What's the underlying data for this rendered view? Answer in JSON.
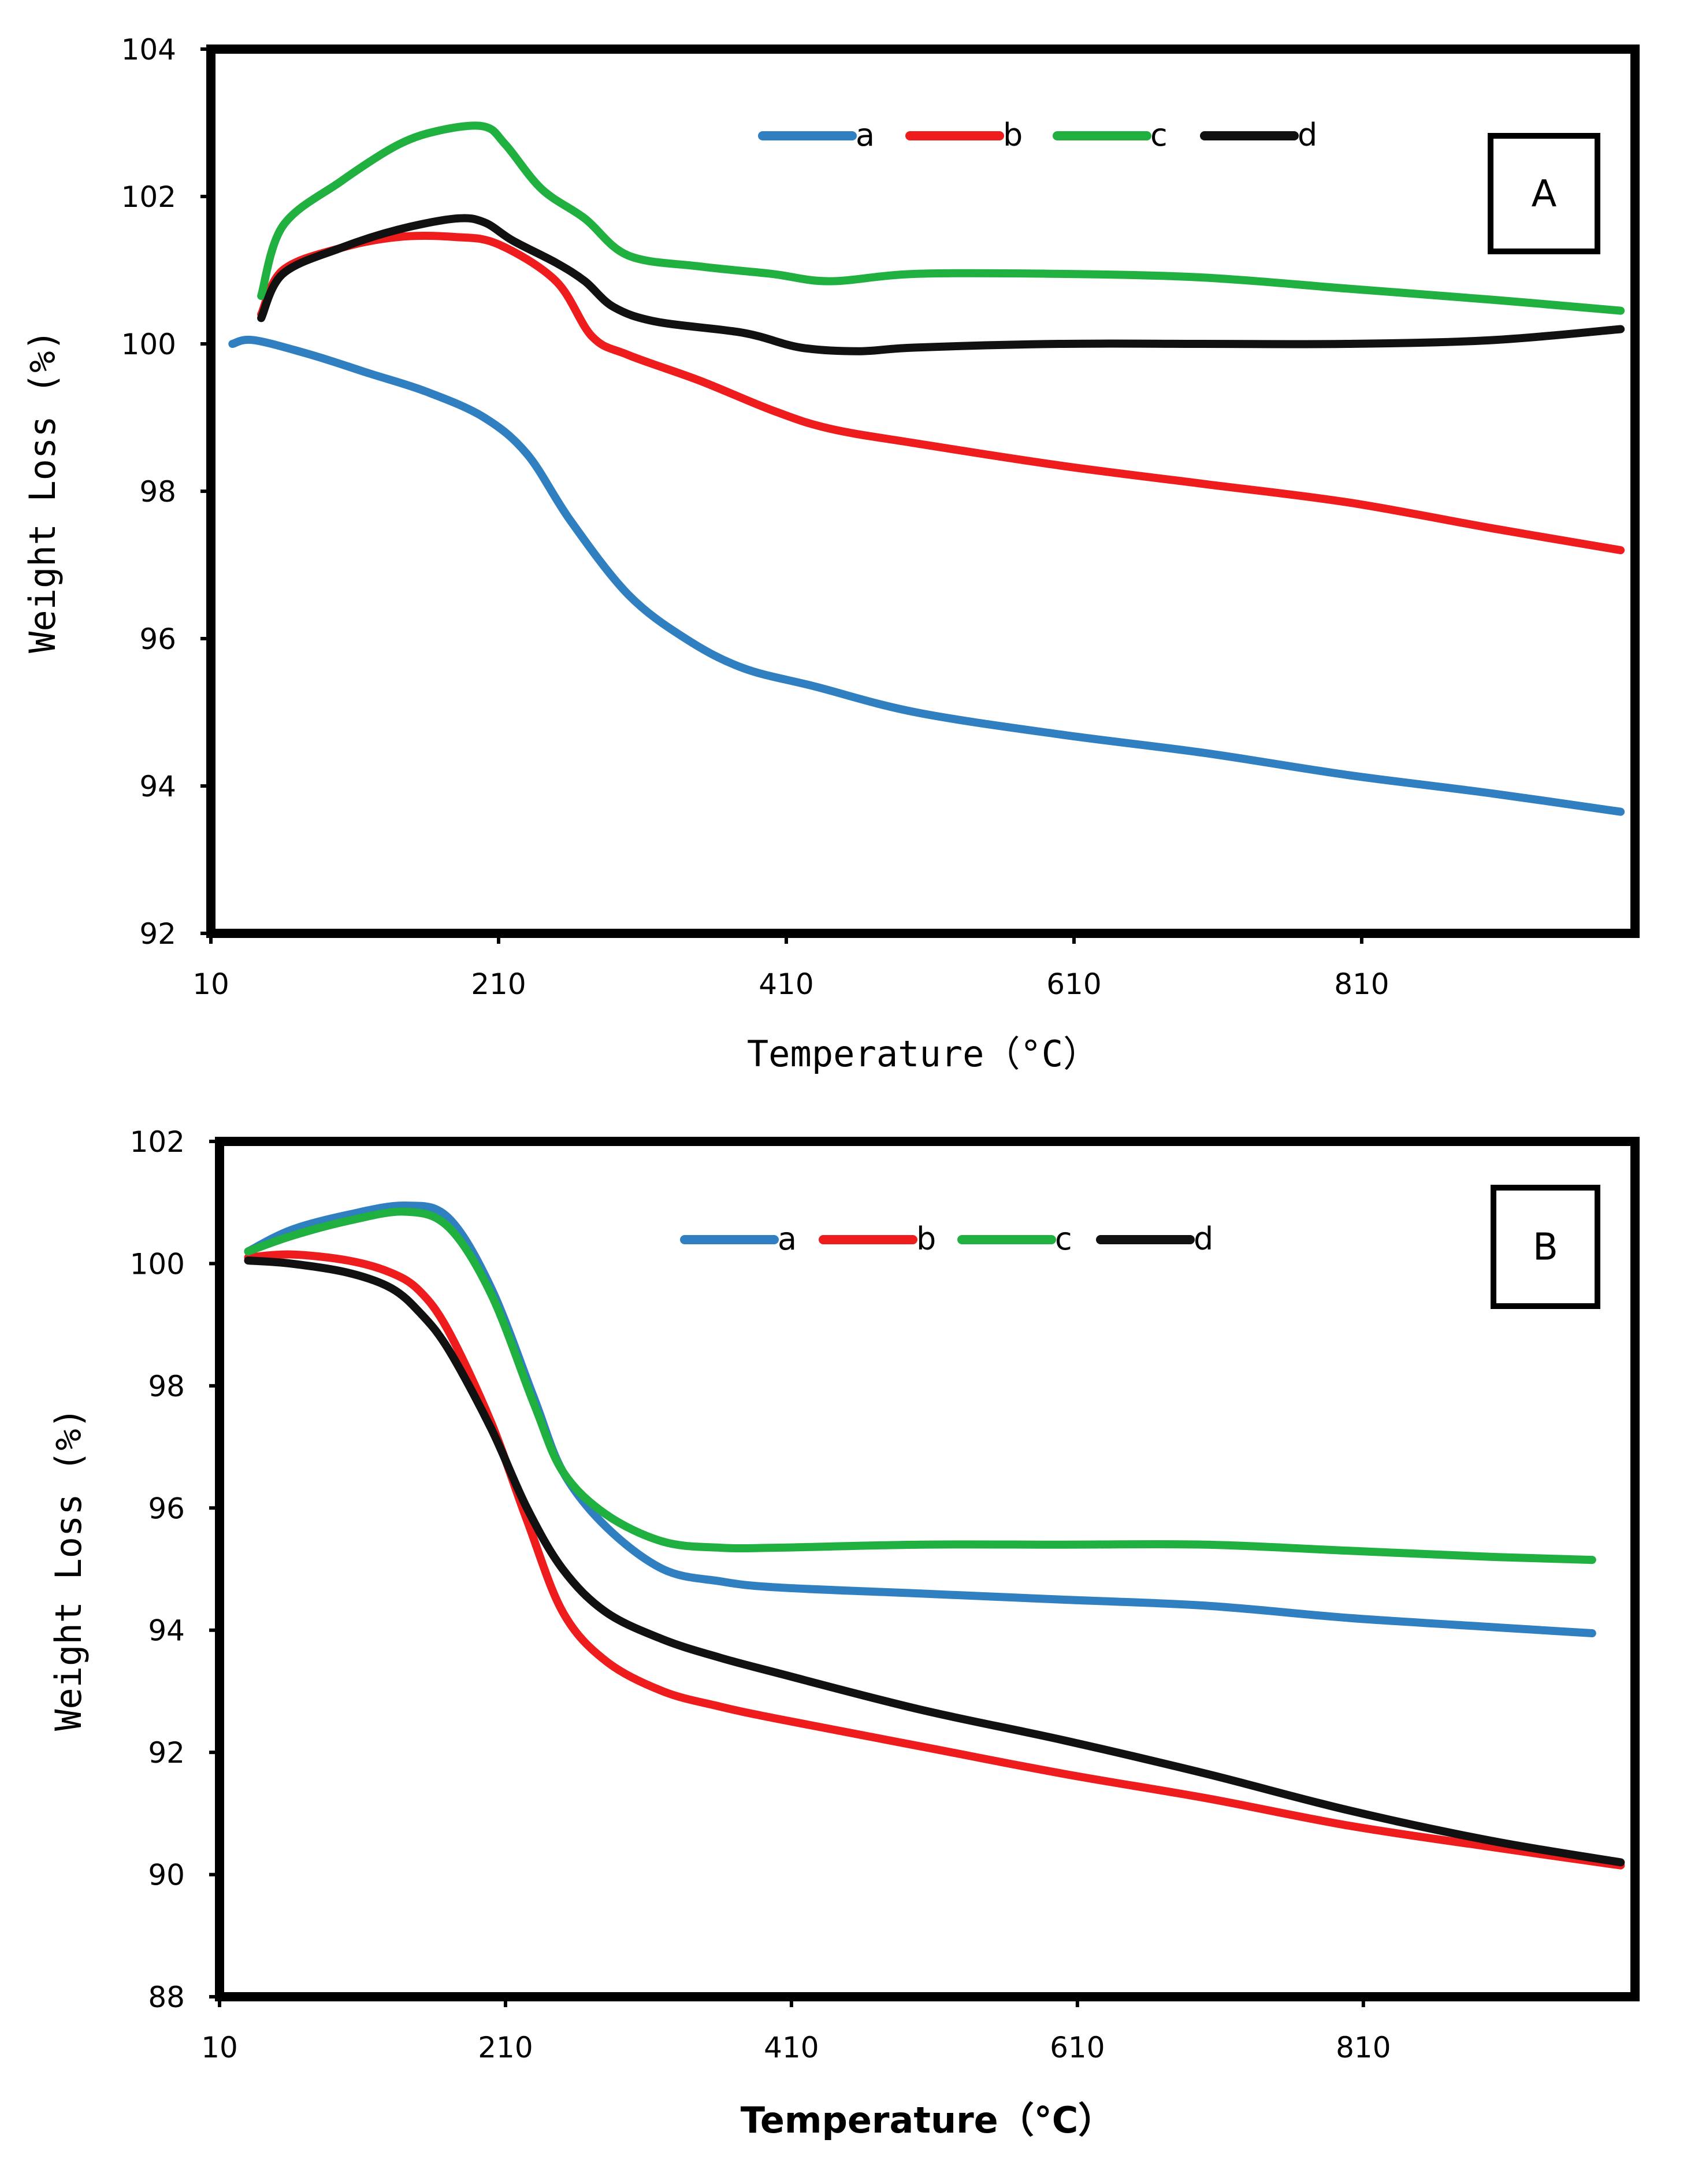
{
  "chart_data": [
    {
      "type": "line",
      "panel": "A",
      "xlabel": "Temperature（°C）",
      "ylabel": "Weight Loss (%)",
      "xlim": [
        10,
        1000
      ],
      "ylim": [
        92,
        104
      ],
      "xticks": [
        "10",
        "210",
        "410",
        "610",
        "810"
      ],
      "xtick_values": [
        10,
        210,
        410,
        610,
        810
      ],
      "yticks": [
        "92",
        "94",
        "96",
        "98",
        "100",
        "102",
        "104"
      ],
      "ytick_values": [
        92,
        94,
        96,
        98,
        100,
        102,
        104
      ],
      "legend_position": "top-center",
      "series": [
        {
          "name": "a",
          "color": "#2f7fc1",
          "x": [
            25,
            40,
            80,
            120,
            160,
            200,
            230,
            260,
            300,
            340,
            380,
            430,
            500,
            600,
            700,
            800,
            900,
            990
          ],
          "y": [
            100.0,
            100.05,
            99.85,
            99.6,
            99.35,
            99.0,
            98.5,
            97.6,
            96.6,
            96.0,
            95.6,
            95.35,
            95.0,
            94.7,
            94.45,
            94.15,
            93.9,
            93.65
          ]
        },
        {
          "name": "b",
          "color": "#ee1c1c",
          "x": [
            45,
            60,
            100,
            140,
            180,
            210,
            250,
            275,
            300,
            350,
            400,
            440,
            500,
            600,
            700,
            800,
            900,
            990
          ],
          "y": [
            100.4,
            101.0,
            101.3,
            101.45,
            101.45,
            101.35,
            100.85,
            100.1,
            99.85,
            99.5,
            99.1,
            98.85,
            98.65,
            98.35,
            98.1,
            97.85,
            97.5,
            97.2
          ]
        },
        {
          "name": "c",
          "color": "#1fb040",
          "x": [
            45,
            60,
            100,
            140,
            170,
            200,
            215,
            240,
            270,
            300,
            350,
            400,
            440,
            500,
            600,
            700,
            800,
            900,
            990
          ],
          "y": [
            100.65,
            101.6,
            102.2,
            102.7,
            102.9,
            102.95,
            102.7,
            102.1,
            101.7,
            101.2,
            101.05,
            100.95,
            100.85,
            100.95,
            100.95,
            100.9,
            100.75,
            100.6,
            100.45
          ]
        },
        {
          "name": "d",
          "color": "#111111",
          "x": [
            45,
            60,
            100,
            140,
            180,
            200,
            220,
            250,
            270,
            290,
            320,
            380,
            420,
            460,
            500,
            600,
            700,
            800,
            900,
            990
          ],
          "y": [
            100.35,
            100.95,
            101.3,
            101.55,
            101.7,
            101.65,
            101.4,
            101.1,
            100.85,
            100.5,
            100.3,
            100.15,
            99.95,
            99.9,
            99.95,
            100.0,
            100.0,
            100.0,
            100.05,
            100.2
          ]
        }
      ],
      "annotation": "A"
    },
    {
      "type": "line",
      "panel": "B",
      "xlabel": "Temperature（°C）",
      "ylabel": "Weight Loss (%)",
      "xlim": [
        10,
        1000
      ],
      "ylim": [
        88,
        102
      ],
      "xticks": [
        "10",
        "210",
        "410",
        "610",
        "810"
      ],
      "xtick_values": [
        10,
        210,
        410,
        610,
        810
      ],
      "yticks": [
        "88",
        "90",
        "92",
        "94",
        "96",
        "98",
        "100",
        "102"
      ],
      "ytick_values": [
        88,
        90,
        92,
        94,
        96,
        98,
        100,
        102
      ],
      "legend_position": "top-center",
      "series": [
        {
          "name": "a",
          "color": "#2f7fc1",
          "x": [
            30,
            60,
            100,
            140,
            170,
            200,
            230,
            250,
            280,
            320,
            360,
            400,
            500,
            600,
            700,
            800,
            900,
            970
          ],
          "y": [
            100.2,
            100.55,
            100.8,
            100.95,
            100.75,
            99.6,
            97.8,
            96.6,
            95.7,
            95.0,
            94.8,
            94.7,
            94.6,
            94.5,
            94.4,
            94.2,
            94.05,
            93.95
          ]
        },
        {
          "name": "b",
          "color": "#ee1c1c",
          "x": [
            30,
            60,
            100,
            130,
            150,
            170,
            200,
            225,
            250,
            280,
            320,
            360,
            400,
            500,
            600,
            700,
            800,
            900,
            990
          ],
          "y": [
            100.1,
            100.15,
            100.05,
            99.85,
            99.55,
            98.9,
            97.4,
            95.8,
            94.3,
            93.5,
            93.0,
            92.75,
            92.55,
            92.1,
            91.65,
            91.25,
            90.8,
            90.45,
            90.15
          ]
        },
        {
          "name": "c",
          "color": "#1fb040",
          "x": [
            30,
            60,
            100,
            140,
            170,
            200,
            230,
            250,
            280,
            320,
            360,
            400,
            500,
            600,
            700,
            800,
            900,
            970
          ],
          "y": [
            100.2,
            100.45,
            100.7,
            100.85,
            100.6,
            99.5,
            97.7,
            96.6,
            95.9,
            95.45,
            95.35,
            95.35,
            95.4,
            95.4,
            95.4,
            95.3,
            95.2,
            95.15
          ]
        },
        {
          "name": "d",
          "color": "#111111",
          "x": [
            30,
            60,
            100,
            130,
            150,
            170,
            200,
            225,
            250,
            280,
            320,
            360,
            400,
            500,
            600,
            700,
            800,
            900,
            990
          ],
          "y": [
            100.05,
            100.0,
            99.85,
            99.6,
            99.2,
            98.6,
            97.3,
            96.0,
            95.0,
            94.3,
            93.85,
            93.55,
            93.3,
            92.7,
            92.2,
            91.65,
            91.05,
            90.55,
            90.2
          ]
        }
      ],
      "annotation": "B"
    }
  ]
}
